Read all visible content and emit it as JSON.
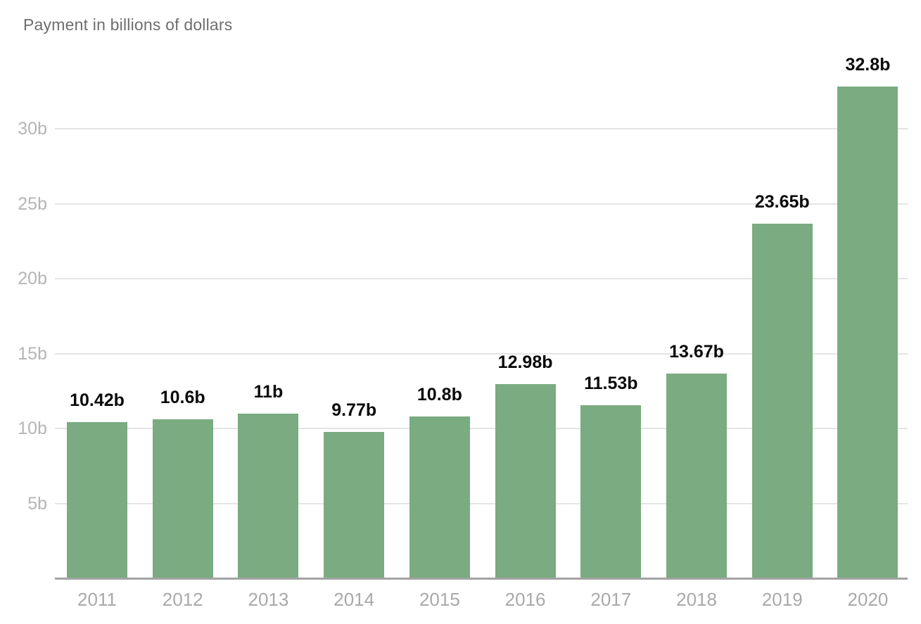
{
  "title": "Payment in billions of dollars",
  "chart_data": {
    "type": "bar",
    "title": "Payment in billions of dollars",
    "xlabel": "",
    "ylabel": "Payment in billions of dollars",
    "categories": [
      "2011",
      "2012",
      "2013",
      "2014",
      "2015",
      "2016",
      "2017",
      "2018",
      "2019",
      "2020"
    ],
    "values": [
      10.42,
      10.6,
      11,
      9.77,
      10.8,
      12.98,
      11.53,
      13.67,
      23.65,
      32.8
    ],
    "bar_labels": [
      "10.42b",
      "10.6b",
      "11b",
      "9.77b",
      "10.8b",
      "12.98b",
      "11.53b",
      "13.67b",
      "23.65b",
      "32.8b"
    ],
    "y_tick_values": [
      5,
      10,
      15,
      20,
      25,
      30
    ],
    "y_tick_labels": [
      "5b",
      "10b",
      "15b",
      "20b",
      "25b",
      "30b"
    ],
    "ylim": [
      0,
      35
    ],
    "grid": true,
    "legend": false,
    "unit": "billions of dollars"
  },
  "colors": {
    "bar": "#7aab81",
    "gridline": "#e4e4e4",
    "axis_line": "#a3a3a3",
    "y_tick_text": "#b5b5b5",
    "x_tick_text": "#a9a9a9",
    "title_text": "#6e6e6e",
    "value_label_text": "#0a0a0a",
    "background": "#ffffff"
  }
}
